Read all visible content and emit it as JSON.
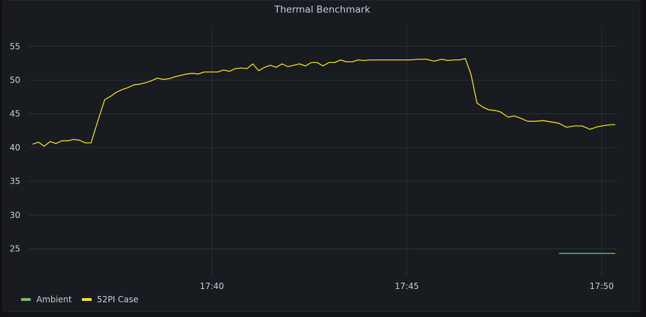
{
  "chart_data": {
    "type": "line",
    "title": "Thermal Benchmark",
    "xlabel": "",
    "ylabel": "",
    "x_ticks": [
      "17:40",
      "17:45",
      "17:50"
    ],
    "x_tick_minutes": [
      40,
      45,
      50
    ],
    "xlim": [
      35.3,
      50.4
    ],
    "ylim": [
      21,
      57
    ],
    "y_ticks": [
      25,
      30,
      35,
      40,
      45,
      50,
      55
    ],
    "grid": true,
    "legend_position": "bottom-left",
    "series": [
      {
        "name": "Ambient",
        "color": "#73bf69",
        "x": [
          48.9,
          49.5,
          50.0,
          50.35
        ],
        "y": [
          24.3,
          24.3,
          24.3,
          24.3
        ]
      },
      {
        "name": "52PI Case",
        "color": "#fade2a",
        "x": [
          35.4,
          35.55,
          35.7,
          35.85,
          36.0,
          36.15,
          36.3,
          36.45,
          36.6,
          36.75,
          36.9,
          37.05,
          37.25,
          37.4,
          37.55,
          37.7,
          37.85,
          38.0,
          38.15,
          38.3,
          38.45,
          38.6,
          38.75,
          38.9,
          39.05,
          39.2,
          39.35,
          39.5,
          39.65,
          39.8,
          40.0,
          40.15,
          40.3,
          40.45,
          40.6,
          40.75,
          40.9,
          41.05,
          41.2,
          41.35,
          41.5,
          41.65,
          41.8,
          41.95,
          42.1,
          42.25,
          42.4,
          42.55,
          42.7,
          42.85,
          43.0,
          43.15,
          43.3,
          43.45,
          43.6,
          43.75,
          43.9,
          44.05,
          44.2,
          44.35,
          44.5,
          44.65,
          44.8,
          44.95,
          45.1,
          45.3,
          45.5,
          45.7,
          45.9,
          46.05,
          46.2,
          46.35,
          46.5,
          46.65,
          46.8,
          46.95,
          47.1,
          47.25,
          47.4,
          47.6,
          47.75,
          47.9,
          48.1,
          48.3,
          48.5,
          48.7,
          48.9,
          49.1,
          49.3,
          49.5,
          49.7,
          49.9,
          50.1,
          50.25,
          50.35
        ],
        "y": [
          40.5,
          40.8,
          40.2,
          40.9,
          40.6,
          41.0,
          41.0,
          41.2,
          41.1,
          40.7,
          40.7,
          43.5,
          47.1,
          47.6,
          48.2,
          48.6,
          48.9,
          49.3,
          49.4,
          49.6,
          49.9,
          50.3,
          50.1,
          50.2,
          50.5,
          50.7,
          50.9,
          51.0,
          50.9,
          51.2,
          51.2,
          51.2,
          51.5,
          51.3,
          51.7,
          51.8,
          51.7,
          52.4,
          51.4,
          51.9,
          52.2,
          51.9,
          52.4,
          52.0,
          52.2,
          52.4,
          52.1,
          52.6,
          52.6,
          52.1,
          52.6,
          52.6,
          53.0,
          52.7,
          52.7,
          53.0,
          52.9,
          53.0,
          53.0,
          53.0,
          53.0,
          53.0,
          53.0,
          53.0,
          53.0,
          53.1,
          53.1,
          52.8,
          53.1,
          52.9,
          53.0,
          53.0,
          53.2,
          50.8,
          46.6,
          46.0,
          45.6,
          45.5,
          45.3,
          44.5,
          44.7,
          44.4,
          43.9,
          43.9,
          44.0,
          43.8,
          43.6,
          43.0,
          43.2,
          43.2,
          42.7,
          43.1,
          43.3,
          43.4,
          43.4
        ]
      }
    ]
  }
}
